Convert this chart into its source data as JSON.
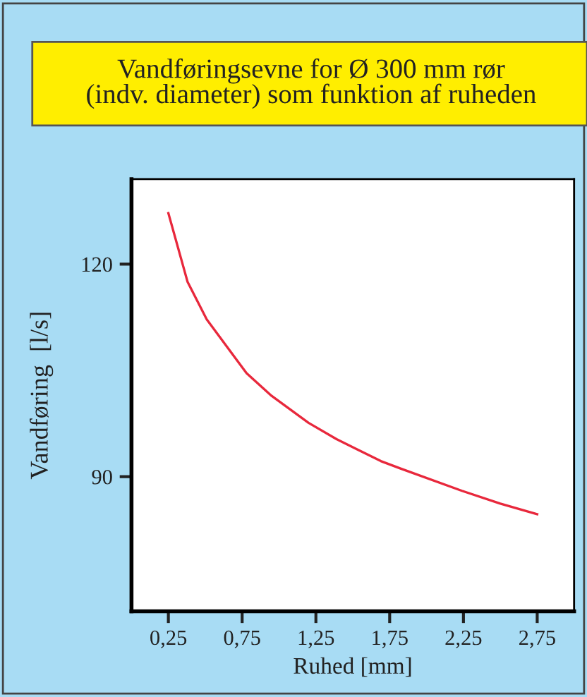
{
  "chart_data": {
    "type": "line",
    "title": "Vandføringsevne for Ø 300 mm rør\n(indv. diameter) som funktion af ruheden",
    "xlabel": "Ruhed [mm]",
    "ylabel": "Vandføring  [l/s]",
    "series": [
      {
        "color": "#e8283c",
        "x": [
          0.25,
          0.38,
          0.51,
          0.78,
          0.95,
          1.2,
          1.39,
          1.69,
          1.83,
          2.24,
          2.5,
          2.75
        ],
        "values": [
          127.2,
          117.5,
          112.2,
          104.6,
          101.4,
          97.6,
          95.3,
          92.2,
          91.1,
          88.0,
          86.2,
          84.7
        ]
      }
    ],
    "xlim": [
      0,
      3
    ],
    "ylim": [
      71,
      132
    ],
    "xticks": [
      {
        "value": 0.25,
        "label": "0,25"
      },
      {
        "value": 0.75,
        "label": "0,75"
      },
      {
        "value": 1.25,
        "label": "1,25"
      },
      {
        "value": 1.75,
        "label": "1,75"
      },
      {
        "value": 2.25,
        "label": "2,25"
      },
      {
        "value": 2.75,
        "label": "2,75"
      }
    ],
    "yticks": [
      90,
      120
    ],
    "grid": false,
    "legend": false,
    "marker": "none",
    "line_style": "solid"
  }
}
